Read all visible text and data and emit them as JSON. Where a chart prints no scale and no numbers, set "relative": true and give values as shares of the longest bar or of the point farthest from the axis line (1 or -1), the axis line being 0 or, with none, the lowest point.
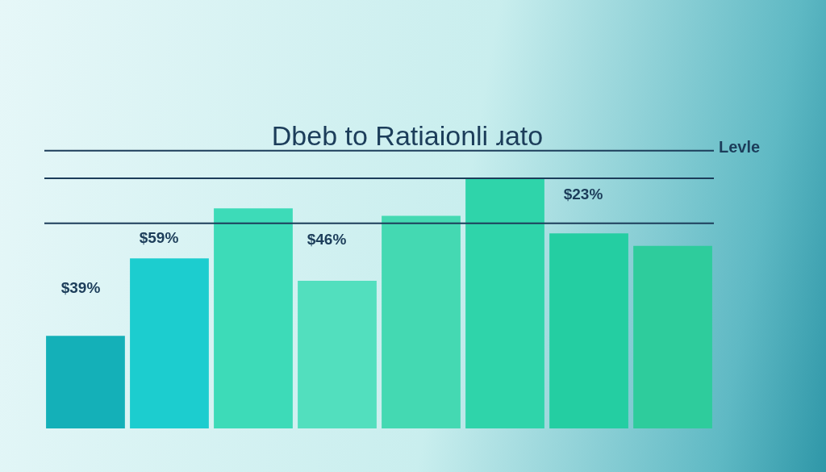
{
  "chart_data": {
    "type": "bar",
    "title": "Dbeb to Ratiaionli ɹato",
    "relative": true,
    "categories": [
      null,
      null,
      null,
      null,
      null,
      null,
      null,
      null
    ],
    "values": [
      0.37,
      0.68,
      0.88,
      0.59,
      0.85,
      1,
      0.78,
      0.73
    ],
    "colors": [
      "#14b0b8",
      "#1ccdcf",
      "#3ddbb8",
      "#52dfbe",
      "#44d9b2",
      "#2fd4aa",
      "#24cea2",
      "#2ecc9c"
    ],
    "annotations": [
      "$39%",
      "$59%",
      "$46%",
      "$23%"
    ],
    "ref_lines": [
      {
        "axis": "y",
        "value": 1.11,
        "label": "Levle",
        "color": "#1c3d5a"
      },
      {
        "axis": "y",
        "value": 1.0,
        "color": "#1c3d5a"
      },
      {
        "axis": "y",
        "value": 0.82,
        "color": "#1c3d5a"
      }
    ]
  }
}
